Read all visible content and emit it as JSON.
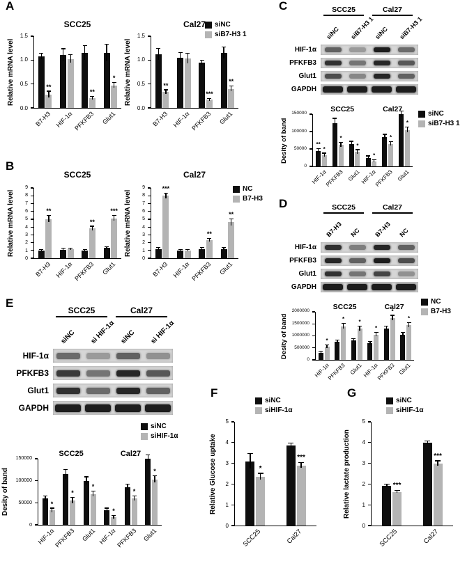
{
  "panels": [
    {
      "label": "A",
      "legend": [
        {
          "label": "siNC",
          "color": "#0e0e0e"
        },
        {
          "label": "siB7-H3 1",
          "color": "#b4b4b4"
        }
      ]
    },
    {
      "label": "B",
      "legend": [
        {
          "label": "NC",
          "color": "#0e0e0e"
        },
        {
          "label": "B7-H3",
          "color": "#b4b4b4"
        }
      ]
    },
    {
      "label": "C",
      "legend": [
        {
          "label": "siNC",
          "color": "#0e0e0e"
        },
        {
          "label": "siB7-H3 1",
          "color": "#b4b4b4"
        }
      ],
      "blot": {
        "group_headers": [
          "SCC25",
          "Cal27"
        ],
        "lane_labels": [
          "siNC",
          "siB7-H3 1",
          "siNC",
          "siB7-H3 1"
        ],
        "rows": [
          {
            "label": "HIF-1α",
            "bands": [
              0.6,
              0.3,
              0.95,
              0.55
            ]
          },
          {
            "label": "PFKFB3",
            "bands": [
              0.85,
              0.5,
              0.9,
              0.65
            ]
          },
          {
            "label": "Glut1",
            "bands": [
              0.7,
              0.4,
              0.9,
              0.6
            ]
          },
          {
            "label": "GAPDH",
            "bands": [
              0.95,
              0.95,
              0.95,
              0.95
            ],
            "wide": true
          }
        ]
      }
    },
    {
      "label": "D",
      "legend": [
        {
          "label": "NC",
          "color": "#0e0e0e"
        },
        {
          "label": "B7-H3",
          "color": "#b4b4b4"
        }
      ],
      "blot": {
        "group_headers": [
          "SCC25",
          "Cal27"
        ],
        "lane_labels": [
          "B7-H3",
          "NC",
          "B7-H3",
          "NC"
        ],
        "rows": [
          {
            "label": "HIF-1α",
            "bands": [
              0.85,
              0.45,
              0.9,
              0.6
            ]
          },
          {
            "label": "PFKFB3",
            "bands": [
              0.9,
              0.6,
              0.95,
              0.7
            ]
          },
          {
            "label": "Glut1",
            "bands": [
              0.85,
              0.5,
              0.75,
              0.35
            ]
          },
          {
            "label": "GAPDH",
            "bands": [
              0.95,
              0.95,
              0.95,
              0.95
            ],
            "wide": true
          }
        ]
      }
    },
    {
      "label": "E",
      "legend": [
        {
          "label": "siNC",
          "color": "#0e0e0e"
        },
        {
          "label": "siHIF-1α",
          "color": "#b4b4b4"
        }
      ],
      "blot": {
        "group_headers": [
          "SCC25",
          "Cal27"
        ],
        "lane_labels": [
          "siNC",
          "si HIF-1α",
          "siNC",
          "si HIF-1α"
        ],
        "rows": [
          {
            "label": "HIF-1α",
            "bands": [
              0.55,
              0.3,
              0.6,
              0.35
            ]
          },
          {
            "label": "PFKFB3",
            "bands": [
              0.8,
              0.5,
              0.9,
              0.65
            ]
          },
          {
            "label": "Glut1",
            "bands": [
              0.85,
              0.55,
              0.9,
              0.6
            ]
          },
          {
            "label": "GAPDH",
            "bands": [
              0.95,
              0.95,
              0.95,
              0.95
            ],
            "wide": true
          }
        ]
      }
    },
    {
      "label": "F",
      "legend": [
        {
          "label": "siNC",
          "color": "#0e0e0e"
        },
        {
          "label": "siHIF-1α",
          "color": "#b4b4b4"
        }
      ]
    },
    {
      "label": "G",
      "legend": [
        {
          "label": "siNC",
          "color": "#0e0e0e"
        },
        {
          "label": "siHIF-1α",
          "color": "#b4b4b4"
        }
      ]
    }
  ],
  "chart_data": [
    {
      "id": "A1",
      "panel": "A",
      "type": "bar",
      "title": "SCC25",
      "ylabel": "Relative mRNA level",
      "ylim": [
        0,
        1.5
      ],
      "yticks": [
        0,
        0.5,
        1,
        1.5
      ],
      "ytick_labels": [
        "0.0",
        "0.5",
        "1.0",
        "1.5"
      ],
      "categories": [
        "B7-H3",
        "HIF-1α",
        "PFKFB3",
        "Glut1"
      ],
      "series": [
        {
          "name": "siNC",
          "color": "#0e0e0e",
          "values": [
            1.08,
            1.1,
            1.15,
            1.15
          ],
          "errors": [
            0.06,
            0.13,
            0.15,
            0.18
          ],
          "sig": [
            "",
            "",
            "",
            ""
          ]
        },
        {
          "name": "siB7-H3 1",
          "color": "#b4b4b4",
          "values": [
            0.28,
            1.02,
            0.2,
            0.47
          ],
          "errors": [
            0.06,
            0.08,
            0.03,
            0.05
          ],
          "sig": [
            "**",
            "",
            "**",
            "*"
          ]
        }
      ]
    },
    {
      "id": "A2",
      "panel": "A",
      "type": "bar",
      "title": "Cal27",
      "ylabel": "Relative mRNA level",
      "ylim": [
        0,
        1.5
      ],
      "yticks": [
        0,
        0.5,
        1,
        1.5
      ],
      "ytick_labels": [
        "0.0",
        "0.5",
        "1.0",
        "1.5"
      ],
      "categories": [
        "B7-H3",
        "HIF-1α",
        "PFKFB3",
        "Glut1"
      ],
      "series": [
        {
          "name": "siNC",
          "color": "#0e0e0e",
          "values": [
            1.12,
            1.05,
            0.95,
            1.15
          ],
          "errors": [
            0.12,
            0.1,
            0.04,
            0.12
          ],
          "sig": [
            "",
            "",
            "",
            ""
          ]
        },
        {
          "name": "siB7-H3 1",
          "color": "#b4b4b4",
          "values": [
            0.33,
            1.03,
            0.17,
            0.4
          ],
          "errors": [
            0.04,
            0.1,
            0.02,
            0.05
          ],
          "sig": [
            "**",
            "",
            "***",
            "**"
          ]
        }
      ]
    },
    {
      "id": "B1",
      "panel": "B",
      "type": "bar",
      "title": "SCC25",
      "ylabel": "Relative  mRNA level",
      "ylim": [
        0,
        9
      ],
      "yticks": [
        0,
        1,
        2,
        3,
        4,
        5,
        6,
        7,
        8,
        9
      ],
      "ytick_labels": [
        "0",
        "1",
        "2",
        "3",
        "4",
        "5",
        "6",
        "7",
        "8",
        "9"
      ],
      "categories": [
        "B7-H3",
        "HIF-1α",
        "PFKFB3",
        "Glut1"
      ],
      "series": [
        {
          "name": "NC",
          "color": "#0e0e0e",
          "values": [
            1.0,
            1.1,
            1.0,
            1.3
          ],
          "errors": [
            0.08,
            0.12,
            0.08,
            0.12
          ],
          "sig": [
            "",
            "",
            "",
            ""
          ]
        },
        {
          "name": "B7-H3",
          "color": "#b4b4b4",
          "values": [
            5.0,
            1.15,
            3.8,
            5.1
          ],
          "errors": [
            0.4,
            0.12,
            0.25,
            0.3
          ],
          "sig": [
            "**",
            "",
            "**",
            "***"
          ]
        }
      ]
    },
    {
      "id": "B2",
      "panel": "B",
      "type": "bar",
      "title": "Cal27",
      "ylabel": "Relative  mRNA level",
      "ylim": [
        0,
        9
      ],
      "yticks": [
        0,
        1,
        2,
        3,
        4,
        5,
        6,
        7,
        8,
        9
      ],
      "ytick_labels": [
        "0",
        "1",
        "2",
        "3",
        "4",
        "5",
        "6",
        "7",
        "8",
        "9"
      ],
      "categories": [
        "B7-H3",
        "HIF-1α",
        "PFKFB3",
        "Glut1"
      ],
      "series": [
        {
          "name": "NC",
          "color": "#0e0e0e",
          "values": [
            1.2,
            1.0,
            1.2,
            1.2
          ],
          "errors": [
            0.1,
            0.08,
            0.1,
            0.1
          ],
          "sig": [
            "",
            "",
            "",
            ""
          ]
        },
        {
          "name": "B7-H3",
          "color": "#b4b4b4",
          "values": [
            8.0,
            1.0,
            2.3,
            4.6
          ],
          "errors": [
            0.3,
            0.08,
            0.2,
            0.4
          ],
          "sig": [
            "***",
            "",
            "**",
            "**"
          ]
        }
      ]
    },
    {
      "id": "C1",
      "panel": "C",
      "type": "bar",
      "group_titles": [
        "SCC25",
        "Cal27"
      ],
      "ylabel": "Desity of band",
      "ylim": [
        0,
        150000
      ],
      "yticks": [
        0,
        50000,
        100000,
        150000
      ],
      "ytick_labels": [
        "0",
        "50000",
        "100000",
        "150000"
      ],
      "categories": [
        "HIF-1α",
        "PFKFB3",
        "Glut1",
        "HIF-1α",
        "PFKFB3",
        "Glut1"
      ],
      "series": [
        {
          "name": "siNC",
          "color": "#0e0e0e",
          "values": [
            45000,
            125000,
            65000,
            25000,
            85000,
            150000
          ],
          "errors": [
            5000,
            12000,
            6000,
            4000,
            6000,
            8000
          ],
          "sig": [
            "**",
            "",
            "",
            "",
            "",
            ""
          ]
        },
        {
          "name": "siB7-H3 1",
          "color": "#b4b4b4",
          "values": [
            33000,
            62000,
            42000,
            15000,
            65000,
            105000
          ],
          "errors": [
            4000,
            6000,
            5000,
            3000,
            5000,
            7000
          ],
          "sig": [
            "*",
            "*",
            "*",
            "*",
            "*",
            "*"
          ]
        }
      ]
    },
    {
      "id": "D1",
      "panel": "D",
      "type": "bar",
      "group_titles": [
        "SCC25",
        "Cal27"
      ],
      "ylabel": "Desity of band",
      "ylim": [
        0,
        2000000
      ],
      "yticks": [
        0,
        500000,
        1000000,
        1500000,
        2000000
      ],
      "ytick_labels": [
        "0",
        "500000",
        "1000000",
        "1500000",
        "2000000"
      ],
      "categories": [
        "HIF-1α",
        "PFKFB3",
        "Glut1",
        "HIF-1α",
        "PFKFB3",
        "Glut1"
      ],
      "series": [
        {
          "name": "NC",
          "color": "#0e0e0e",
          "values": [
            300000,
            750000,
            800000,
            700000,
            1300000,
            1050000
          ],
          "errors": [
            40000,
            60000,
            60000,
            50000,
            80000,
            70000
          ],
          "sig": [
            "",
            "",
            "",
            "",
            "",
            ""
          ]
        },
        {
          "name": "B7-H3",
          "color": "#b4b4b4",
          "values": [
            550000,
            1400000,
            1300000,
            1050000,
            1750000,
            1450000
          ],
          "errors": [
            60000,
            100000,
            90000,
            70000,
            90000,
            90000
          ],
          "sig": [
            "*",
            "*",
            "*",
            "*",
            "*",
            "*"
          ]
        }
      ]
    },
    {
      "id": "E1",
      "panel": "E",
      "type": "bar",
      "group_titles": [
        "SCC25",
        "Cal27"
      ],
      "ylabel": "Desity of band",
      "ylim": [
        0,
        150000
      ],
      "yticks": [
        0,
        50000,
        100000,
        150000
      ],
      "ytick_labels": [
        "0",
        "50000",
        "100000",
        "150000"
      ],
      "categories": [
        "HIF-1α",
        "PFKFB3",
        "Glut1",
        "HIF-1α",
        "PFKFB3",
        "Glut1"
      ],
      "series": [
        {
          "name": "siNC",
          "color": "#0e0e0e",
          "values": [
            60000,
            115000,
            100000,
            33000,
            85000,
            150000
          ],
          "errors": [
            5000,
            10000,
            8000,
            4000,
            6000,
            8000
          ],
          "sig": [
            "",
            "",
            "",
            "",
            "",
            ""
          ]
        },
        {
          "name": "siHIF-1α",
          "color": "#b4b4b4",
          "values": [
            33000,
            55000,
            70000,
            18000,
            60000,
            103000
          ],
          "errors": [
            4000,
            6000,
            6000,
            3000,
            5000,
            7000
          ],
          "sig": [
            "*",
            "*",
            "*",
            "*",
            "*",
            "*"
          ]
        }
      ]
    },
    {
      "id": "F1",
      "panel": "F",
      "type": "bar",
      "ylabel": "Relative Glucose uptake",
      "ylim": [
        0,
        5
      ],
      "yticks": [
        0,
        1,
        2,
        3,
        4,
        5
      ],
      "ytick_labels": [
        "0",
        "1",
        "2",
        "3",
        "4",
        "5"
      ],
      "categories": [
        "SCC25",
        "Cal27"
      ],
      "series": [
        {
          "name": "siNC",
          "color": "#0e0e0e",
          "values": [
            3.1,
            3.85
          ],
          "errors": [
            0.35,
            0.1
          ],
          "sig": [
            "",
            ""
          ]
        },
        {
          "name": "siHIF-1α",
          "color": "#b4b4b4",
          "values": [
            2.35,
            2.9
          ],
          "errors": [
            0.15,
            0.12
          ],
          "sig": [
            "*",
            "***"
          ]
        }
      ]
    },
    {
      "id": "G1",
      "panel": "G",
      "type": "bar",
      "ylabel": "Relative lactate production",
      "ylim": [
        0,
        5
      ],
      "yticks": [
        0,
        1,
        2,
        3,
        4,
        5
      ],
      "ytick_labels": [
        "0",
        "1",
        "2",
        "3",
        "4",
        "5"
      ],
      "categories": [
        "SCC25",
        "Cal27"
      ],
      "series": [
        {
          "name": "siNC",
          "color": "#0e0e0e",
          "values": [
            1.9,
            4.0
          ],
          "errors": [
            0.07,
            0.06
          ],
          "sig": [
            "",
            ""
          ]
        },
        {
          "name": "siHIF-1α",
          "color": "#b4b4b4",
          "values": [
            1.62,
            3.0
          ],
          "errors": [
            0.05,
            0.1
          ],
          "sig": [
            "***",
            "***"
          ]
        }
      ]
    }
  ]
}
